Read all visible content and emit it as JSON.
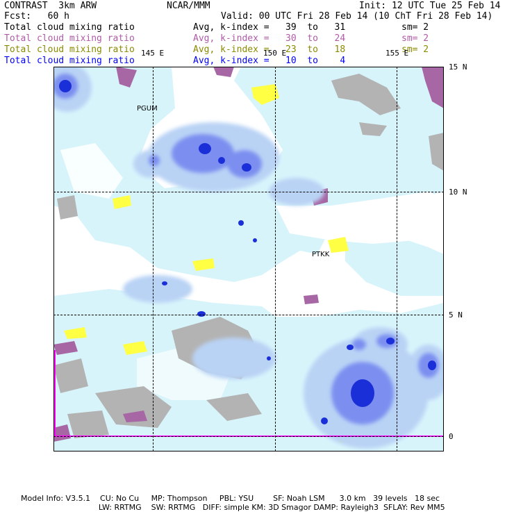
{
  "header": {
    "model": "CONTRAST  3km ARW",
    "org": "NCAR/MMM",
    "init": "Init: 12 UTC Tue 25 Feb 14",
    "fcst": "Fcst:   60 h",
    "valid": "Valid: 00 UTC Fri 28 Feb 14 (10 ChT Fri 28 Feb 14)"
  },
  "legend": [
    {
      "label": "Total cloud mixing ratio",
      "range": "Avg, k-index =   39  to   31",
      "sm": "sm= 2",
      "color": "#000000"
    },
    {
      "label": "Total cloud mixing ratio",
      "range": "Avg, k-index =   30  to   24",
      "sm": "sm= 2",
      "color": "#b05aa8"
    },
    {
      "label": "Total cloud mixing ratio",
      "range": "Avg, k-index =   23  to   18",
      "sm": "sm= 2",
      "color": "#8a8a00"
    },
    {
      "label": "Total cloud mixing ratio",
      "range": "Avg, k-index =   10  to    4",
      "sm": "",
      "color": "#0000ff"
    }
  ],
  "longitudes": [
    "145 E",
    "150 E",
    "155 E"
  ],
  "latitudes": [
    "15 N",
    "10 N",
    "5 N",
    "0"
  ],
  "stations": [
    "PGUM",
    "PTKK"
  ],
  "footer": {
    "line1": "Model Info: V3.5.1    CU: No Cu     MP: Thompson     PBL: YSU        SF: Noah LSM      3.0 km   39 levels   18 sec",
    "line2": "                                LW: RRTMG    SW: RRTMG   DIFF: simple KM: 3D Smagor DAMP: Rayleigh3  SFLAY: Rev MM5"
  },
  "colors": {
    "cloud_light": "#d8f4fb",
    "cloud_mid": "#b9d3f5",
    "cloud_dense": "#7b8ff0",
    "cloud_core": "#1b2fd8",
    "land_gray": "#b3b3b3",
    "kindex_purple": "#a667a4",
    "kindex_yellow": "#ffff44",
    "boundary_magenta": "#ff00ff"
  }
}
